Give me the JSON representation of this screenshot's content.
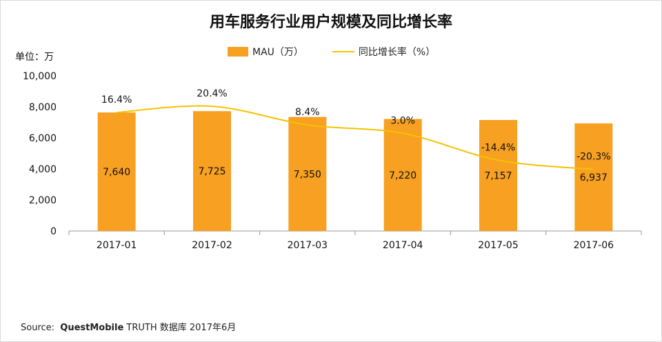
{
  "chart_data": {
    "type": "bar",
    "title": "用车服务行业用户规模及同比增长率",
    "unit_label": "单位：万",
    "categories": [
      "2017-01",
      "2017-02",
      "2017-03",
      "2017-04",
      "2017-05",
      "2017-06"
    ],
    "series": [
      {
        "name": "MAU（万）",
        "type": "bar",
        "values": [
          7640,
          7725,
          7350,
          7220,
          7157,
          6937
        ],
        "labels": [
          "7,640",
          "7,725",
          "7,350",
          "7,220",
          "7,157",
          "6,937"
        ]
      },
      {
        "name": "同比增长率（%）",
        "type": "line",
        "values": [
          16.4,
          20.4,
          8.4,
          3.0,
          -14.4,
          -20.3
        ],
        "labels": [
          "16.4%",
          "20.4%",
          "8.4%",
          "3.0%",
          "-14.4%",
          "-20.3%"
        ]
      }
    ],
    "yticks": [
      "10,000",
      "8,000",
      "6,000",
      "4,000",
      "2,000",
      "0"
    ],
    "ylim": [
      0,
      10000
    ]
  },
  "colors": {
    "bar": "#f7a021",
    "line": "#f5c200",
    "axis": "#999999"
  },
  "source": {
    "prefix": "Source:",
    "brand": "QuestMobile",
    "suffix": "TRUTH 数据库 2017年6月"
  }
}
